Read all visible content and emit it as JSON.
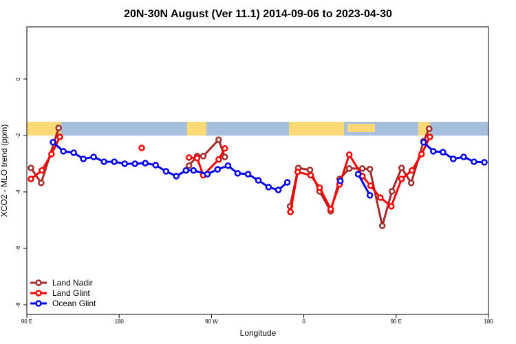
{
  "chart_data": {
    "type": "line",
    "title": "20N-30N August (Ver 11.1)   2014-09-06 to 2023-04-30",
    "x_label": "Longitude",
    "y_label": "XCO2 - MLO trend (ppm)",
    "xlim": [
      90,
      540
    ],
    "xticks": [
      {
        "value": 90,
        "label": "90 E"
      },
      180,
      {
        "value": 270,
        "label": "90 W"
      },
      {
        "value": 360,
        "label": "0"
      },
      {
        "value": 450,
        "label": "90 E"
      },
      {
        "value": 540,
        "label": "180"
      }
    ],
    "ylim": [
      -8.34,
      1.85
    ],
    "yticks": [
      0,
      -2,
      -4,
      -6,
      -8
    ],
    "legend": "lower left",
    "series": [
      {
        "name": "Land Nadir",
        "color": "#a52a2a",
        "x": [
          94,
          104,
          121,
          null,
          248,
          256,
          262,
          277,
          283,
          null,
          346.6,
          354.6,
          366,
          375.4,
          386.2,
          394.9,
          404.3,
          417.1,
          424.4,
          436.5,
          445.9,
          455.3,
          464.7,
          476.8,
          482.2
        ],
        "values": [
          -3.15,
          -3.68,
          -1.73,
          null,
          -3.07,
          -2.73,
          -2.73,
          -2.15,
          -2.76,
          null,
          -4.51,
          -3.15,
          -3.22,
          -3.98,
          -4.68,
          -3.54,
          -3.17,
          -3.17,
          -3.19,
          -5.2,
          -3.98,
          -3.15,
          -3.68,
          -2.2,
          -1.76
        ]
      },
      {
        "name": "Land Glint",
        "color": "#ff0000",
        "x": [
          94,
          104.7,
          114,
          122.2,
          null,
          202,
          null,
          248,
          256,
          262,
          277,
          283,
          null,
          347,
          354,
          366.7,
          375.4,
          386.2,
          394.9,
          404.3,
          417.1,
          425.1,
          434.6,
          445.3,
          455.3,
          465.4,
          474.8,
          482.9
        ],
        "values": [
          -3.54,
          -3.24,
          -2.66,
          -2.05,
          null,
          -2.44,
          null,
          -2.78,
          -2.8,
          -3.41,
          -2.85,
          -2.46,
          null,
          -4.71,
          -3.29,
          -3.41,
          -3.85,
          -4.61,
          -3.73,
          -2.68,
          -3.44,
          -3.78,
          -4.2,
          -4.51,
          -3.54,
          -3.24,
          -2.66,
          -2.05
        ]
      },
      {
        "name": "Ocean Glint",
        "color": "#0000ee",
        "x": [
          115.5,
          125.6,
          135.7,
          145.1,
          155.1,
          165.2,
          175.3,
          185.4,
          195.4,
          205.5,
          215.6,
          225.7,
          235.7,
          245.1,
          252.5,
          266,
          276,
          286.1,
          295.5,
          305.6,
          315.7,
          325.7,
          335.1,
          343.9,
          null,
          395.6,
          null,
          413,
          424.4,
          null,
          476.8,
          486.2,
          495.6,
          505.7,
          515.8,
          525.9,
          536
        ],
        "values": [
          -2.24,
          -2.56,
          -2.61,
          -2.83,
          -2.76,
          -2.93,
          -2.93,
          -3.0,
          -3.0,
          -2.98,
          -3.05,
          -3.27,
          -3.44,
          -3.24,
          -3.24,
          -3.37,
          -3.2,
          -3.07,
          -3.34,
          -3.37,
          -3.59,
          -3.83,
          -3.93,
          -3.66,
          null,
          -3.61,
          null,
          -3.37,
          -4.12,
          null,
          -2.24,
          -2.56,
          -2.59,
          -2.83,
          -2.76,
          -2.93,
          -2.95
        ]
      }
    ]
  }
}
